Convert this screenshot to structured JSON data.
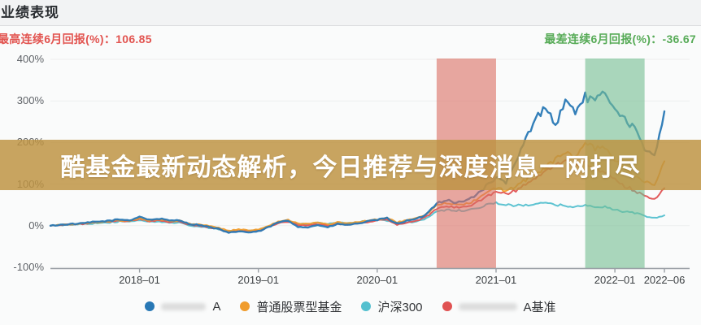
{
  "header": {
    "title": "业绩表现"
  },
  "stats": {
    "best": {
      "label": "最高连续6月回报(%)：",
      "value": "106.85",
      "color": "#e25450"
    },
    "worst": {
      "label": "最差连续6月回报(%)：",
      "value": "-36.67",
      "color": "#57ab57"
    }
  },
  "banner": {
    "text": "酷基金最新动态解析，今日推荐与深度消息一网打尽",
    "bg_rgba": "rgba(190,146,66,0.84)"
  },
  "chart_data": {
    "type": "line",
    "title": "业绩表现",
    "x_start": "2017-04",
    "x_end": "2022-06",
    "x_ticks": [
      "2018-01",
      "2019-01",
      "2020-01",
      "2021-01",
      "2022-01",
      "2022-06"
    ],
    "y_ticks": [
      "400%",
      "300%",
      "200%",
      "100%",
      "0%",
      "-100%"
    ],
    "ylim": [
      -100,
      400
    ],
    "y_unit": "%",
    "grid": "faint-horizontal",
    "legend_position": "bottom",
    "axis_color": "#9aa0a6",
    "bands": [
      {
        "name": "highlight-band-red",
        "from": "2020-07",
        "to": "2021-01",
        "rgba": "rgba(218,110,98,0.6)"
      },
      {
        "name": "highlight-band-green",
        "from": "2021-10",
        "to": "2022-04",
        "rgba": "rgba(115,190,145,0.6)"
      }
    ],
    "series": [
      {
        "name": "A",
        "redacted_prefix": true,
        "redacted_width": 55,
        "color": "#2878b5",
        "width": 2.4,
        "values": [
          0,
          2,
          4,
          5,
          8,
          10,
          12,
          15,
          13,
          22,
          14,
          17,
          12,
          14,
          4,
          2,
          -3,
          -8,
          -18,
          -13,
          -16,
          -14,
          -4,
          8,
          12,
          -2,
          -4,
          2,
          -4,
          4,
          2,
          5,
          10,
          14,
          18,
          5,
          12,
          16,
          28,
          55,
          62,
          55,
          60,
          75,
          95,
          115,
          105,
          150,
          210,
          255,
          290,
          240,
          300,
          275,
          310,
          298,
          320,
          285,
          255,
          235,
          180,
          170,
          275
        ]
      },
      {
        "name": "普通股票型基金",
        "redacted_prefix": false,
        "redacted_width": 0,
        "color": "#f09c2c",
        "width": 2,
        "values": [
          0,
          2,
          3,
          5,
          7,
          9,
          11,
          13,
          12,
          18,
          13,
          15,
          11,
          12,
          5,
          3,
          0,
          -5,
          -12,
          -9,
          -11,
          -9,
          0,
          10,
          14,
          6,
          4,
          8,
          3,
          8,
          6,
          8,
          12,
          15,
          18,
          8,
          14,
          18,
          28,
          48,
          55,
          50,
          52,
          62,
          78,
          90,
          85,
          95,
          110,
          125,
          140,
          160,
          175,
          165,
          200,
          185,
          190,
          160,
          140,
          120,
          105,
          100,
          155
        ]
      },
      {
        "name": "沪深300",
        "redacted_prefix": false,
        "redacted_width": 0,
        "color": "#54c0cf",
        "width": 2,
        "values": [
          0,
          1,
          2,
          4,
          5,
          7,
          8,
          10,
          9,
          14,
          9,
          10,
          7,
          8,
          0,
          -2,
          -5,
          -8,
          -14,
          -12,
          -13,
          -10,
          -2,
          8,
          12,
          5,
          4,
          7,
          4,
          7,
          6,
          8,
          12,
          14,
          12,
          4,
          8,
          10,
          18,
          35,
          38,
          36,
          37,
          42,
          50,
          55,
          50,
          48,
          50,
          52,
          54,
          50,
          48,
          46,
          48,
          46,
          45,
          38,
          34,
          30,
          24,
          18,
          25
        ]
      },
      {
        "name": "A基准",
        "redacted_prefix": true,
        "redacted_width": 72,
        "color": "#e05252",
        "width": 2,
        "values": [
          0,
          1,
          3,
          4,
          6,
          8,
          10,
          12,
          11,
          16,
          11,
          13,
          9,
          10,
          2,
          0,
          -4,
          -8,
          -15,
          -12,
          -14,
          -12,
          -3,
          6,
          10,
          2,
          0,
          4,
          0,
          5,
          3,
          5,
          9,
          12,
          15,
          2,
          8,
          12,
          22,
          42,
          48,
          44,
          46,
          55,
          70,
          82,
          76,
          85,
          100,
          115,
          130,
          145,
          155,
          145,
          150,
          135,
          130,
          110,
          95,
          85,
          70,
          65,
          90
        ]
      }
    ]
  }
}
